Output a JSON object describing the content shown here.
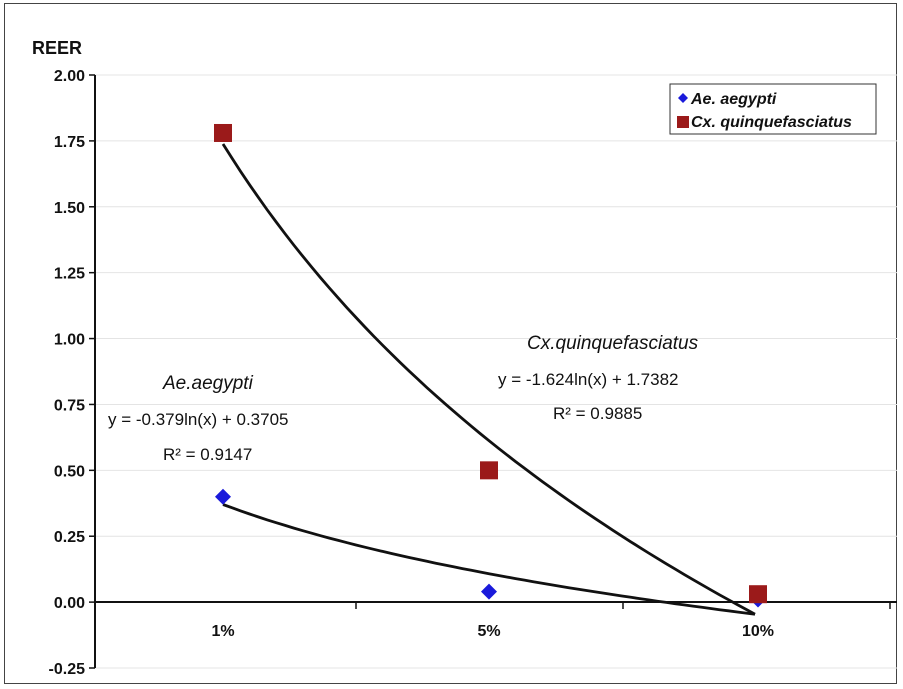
{
  "chart_data": {
    "type": "scatter",
    "ylabel": "REER",
    "categories": [
      "1%",
      "5%",
      "10%"
    ],
    "ylim": [
      -0.25,
      2.0
    ],
    "yticks": [
      "2.00",
      "1.75",
      "1.50",
      "1.25",
      "1.00",
      "0.75",
      "0.50",
      "0.25",
      "0.00",
      "-0.25"
    ],
    "grid": "horizontal",
    "legend_position": "top-right",
    "series": [
      {
        "name": "Ae. aegypti",
        "marker": "diamond",
        "color": "#1a1adb",
        "values": [
          0.4,
          0.04,
          0.01
        ],
        "trendline": {
          "type": "log",
          "a": -0.379,
          "b": 0.3705
        }
      },
      {
        "name": "Cx. quinquefasciatus",
        "marker": "square",
        "color": "#9b1a1a",
        "values": [
          1.78,
          0.5,
          0.03
        ],
        "trendline": {
          "type": "log",
          "a": -1.624,
          "b": 1.7382
        }
      }
    ],
    "annotations": {
      "ae": {
        "title": "Ae.aegypti",
        "equation": "y = -0.379ln(x) + 0.3705",
        "r2": "R² = 0.9147"
      },
      "cx": {
        "title": "Cx.quinquefasciatus",
        "equation": "y = -1.624ln(x) + 1.7382",
        "r2": "R² = 0.9885"
      }
    }
  }
}
